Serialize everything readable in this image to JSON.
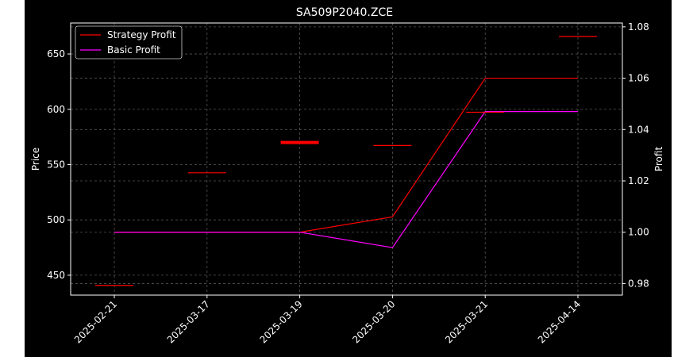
{
  "chart_data": {
    "type": "line",
    "title": "SA509P2040.ZCE",
    "xlabel": "",
    "ylabel": "Price",
    "ylabel_right": "Profit",
    "categories": [
      "2025-02-21",
      "2025-03-17",
      "2025-03-19",
      "2025-03-20",
      "2025-03-21",
      "2025-04-14"
    ],
    "price_markers": [
      {
        "x": "2025-02-21",
        "y": 440.8,
        "bold": false
      },
      {
        "x": "2025-03-17",
        "y": 542.6,
        "bold": false
      },
      {
        "x": "2025-03-19",
        "y": 570.0,
        "bold": true
      },
      {
        "x": "2025-03-20",
        "y": 567.3,
        "bold": false
      },
      {
        "x": "2025-03-21",
        "y": 597.3,
        "bold": false
      },
      {
        "x": "2025-04-14",
        "y": 665.8,
        "bold": false
      }
    ],
    "series": [
      {
        "name": "Strategy Profit",
        "axis": "right",
        "color": "#ff0000",
        "values": [
          1.0,
          1.0,
          1.0,
          1.006,
          1.06,
          1.06
        ]
      },
      {
        "name": "Basic Profit",
        "axis": "right",
        "color": "#ff00ff",
        "values": [
          1.0,
          1.0,
          1.0,
          0.994,
          1.047,
          1.047
        ]
      }
    ],
    "ylim": [
      432,
      678
    ],
    "ylim_right": [
      0.9755,
      1.0815
    ],
    "yticks": [
      450,
      500,
      550,
      600,
      650
    ],
    "yticks_right": [
      0.98,
      1.0,
      1.02,
      1.04,
      1.06,
      1.08
    ],
    "grid": true,
    "legend": "top-left",
    "colors": {
      "background": "#000000",
      "text": "#ffffff",
      "grid": "#555555"
    }
  }
}
